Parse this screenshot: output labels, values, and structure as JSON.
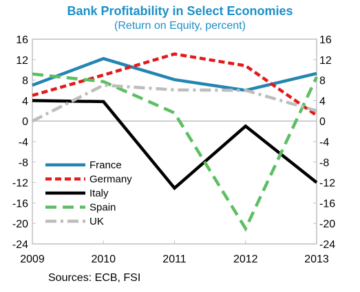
{
  "title": "Bank Profitability in Select Economies",
  "subtitle": "(Return on Equity, percent)",
  "source": "Sources: ECB, FSI",
  "chart_data": {
    "type": "line",
    "title": "Bank Profitability in Select Economies",
    "subtitle": "(Return on Equity, percent)",
    "x": [
      2009,
      2010,
      2011,
      2012,
      2013
    ],
    "x_tick_labels": [
      "2009",
      "2010",
      "2011",
      "2012",
      "2013"
    ],
    "ylim": [
      -24,
      16
    ],
    "y_ticks": [
      16,
      12,
      8,
      4,
      0,
      -4,
      -8,
      -12,
      -16,
      -20,
      -24
    ],
    "y_tick_labels": [
      "16",
      "12",
      "8",
      "4",
      "0",
      "-4",
      "-8",
      "-12",
      "-16",
      "-20",
      "-24"
    ],
    "secondary_y_axis": true,
    "grid": false,
    "legend_placement": "bottom-left",
    "series": [
      {
        "name": "France",
        "values": [
          7.0,
          12.2,
          8.1,
          6.0,
          9.3
        ],
        "color": "#2385b2",
        "dash": "solid"
      },
      {
        "name": "Germany",
        "values": [
          5.0,
          9.0,
          13.1,
          10.8,
          1.1
        ],
        "color": "#e31a1c",
        "dash": "dash"
      },
      {
        "name": "Italy",
        "values": [
          4.0,
          3.8,
          -13.1,
          -1.0,
          -12.0
        ],
        "color": "#000000",
        "dash": "solid"
      },
      {
        "name": "Spain",
        "values": [
          9.2,
          7.7,
          1.6,
          -21.0,
          8.6
        ],
        "color": "#5cbf62",
        "dash": "longdash"
      },
      {
        "name": "UK",
        "values": [
          0.0,
          7.0,
          6.1,
          6.0,
          2.0
        ],
        "color": "#bdbdbd",
        "dash": "dashdot"
      }
    ],
    "source": "Sources: ECB, FSI"
  }
}
